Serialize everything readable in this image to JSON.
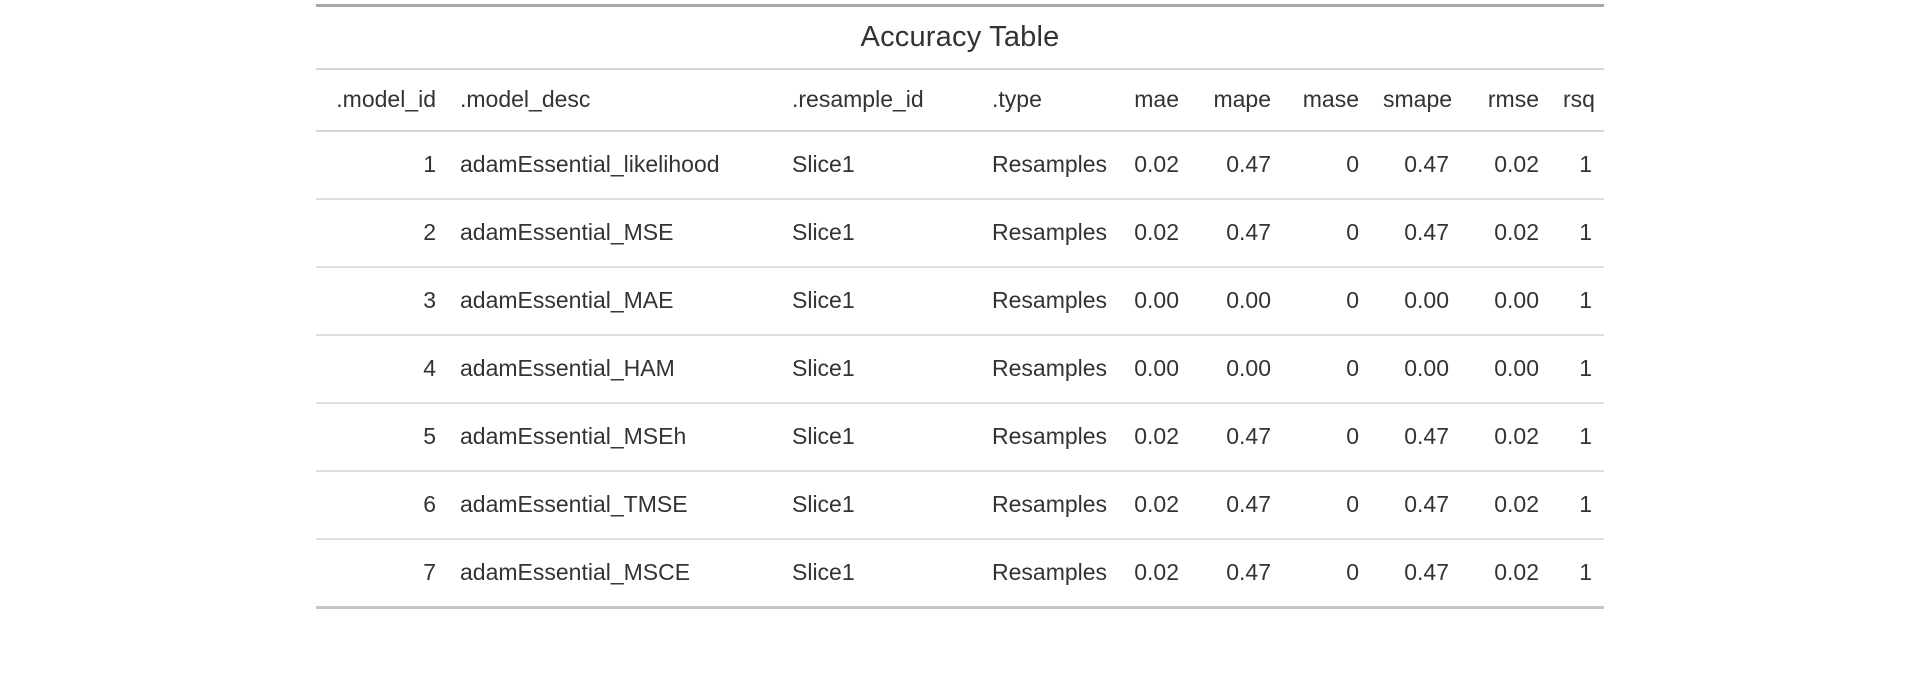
{
  "chart_data": {
    "type": "table",
    "title": "Accuracy Table",
    "columns": [
      ".model_id",
      ".model_desc",
      ".resample_id",
      ".type",
      "mae",
      "mape",
      "mase",
      "smape",
      "rmse",
      "rsq"
    ],
    "rows": [
      [
        "1",
        "adamEssential_likelihood",
        "Slice1",
        "Resamples",
        "0.02",
        "0.47",
        "0",
        "0.47",
        "0.02",
        "1"
      ],
      [
        "2",
        "adamEssential_MSE",
        "Slice1",
        "Resamples",
        "0.02",
        "0.47",
        "0",
        "0.47",
        "0.02",
        "1"
      ],
      [
        "3",
        "adamEssential_MAE",
        "Slice1",
        "Resamples",
        "0.00",
        "0.00",
        "0",
        "0.00",
        "0.00",
        "1"
      ],
      [
        "4",
        "adamEssential_HAM",
        "Slice1",
        "Resamples",
        "0.00",
        "0.00",
        "0",
        "0.00",
        "0.00",
        "1"
      ],
      [
        "5",
        "adamEssential_MSEh",
        "Slice1",
        "Resamples",
        "0.02",
        "0.47",
        "0",
        "0.47",
        "0.02",
        "1"
      ],
      [
        "6",
        "adamEssential_TMSE",
        "Slice1",
        "Resamples",
        "0.02",
        "0.47",
        "0",
        "0.47",
        "0.02",
        "1"
      ],
      [
        "7",
        "adamEssential_MSCE",
        "Slice1",
        "Resamples",
        "0.02",
        "0.47",
        "0",
        "0.47",
        "0.02",
        "1"
      ]
    ],
    "layout_hints": {
      "numeric_right_aligned_columns": [
        ".model_id",
        "mae",
        "mape",
        "mase",
        "smape",
        "rmse",
        "rsq"
      ],
      "left_aligned_columns": [
        ".model_desc",
        ".resample_id",
        ".type"
      ],
      "grid": "horizontal-rules-only"
    }
  },
  "colors": {
    "text": "#333333",
    "border_top": "#a9a9a9",
    "border_bottom": "#c6c6c6",
    "border_inner": "#d4d4d4",
    "border_row_separator": "#e0e0e0",
    "background": "#ffffff"
  }
}
